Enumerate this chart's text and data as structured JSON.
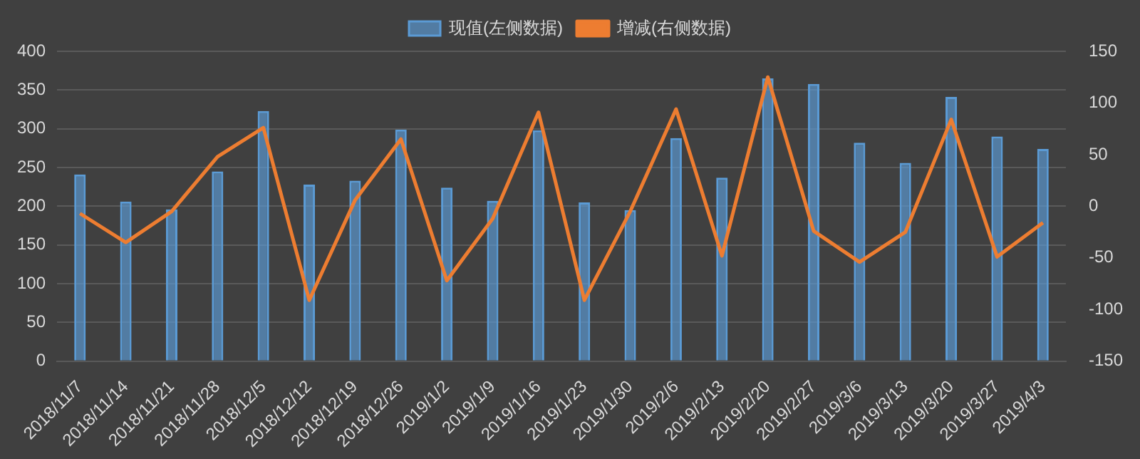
{
  "chart_data": {
    "type": "bar",
    "categories": [
      "2018/11/7",
      "2018/11/14",
      "2018/11/21",
      "2018/11/28",
      "2018/12/5",
      "2018/12/12",
      "2018/12/19",
      "2018/12/26",
      "2019/1/2",
      "2019/1/9",
      "2019/1/16",
      "2019/1/23",
      "2019/1/30",
      "2019/2/6",
      "2019/2/13",
      "2019/2/20",
      "2019/2/27",
      "2019/3/6",
      "2019/3/13",
      "2019/3/20",
      "2019/3/27",
      "2019/4/3"
    ],
    "series": [
      {
        "name": "现值(左侧数据)",
        "color": "#5b9bd5",
        "values": [
          241,
          206,
          196,
          245,
          323,
          228,
          233,
          299,
          224,
          207,
          298,
          205,
          195,
          288,
          237,
          365,
          358,
          282,
          256,
          341,
          290,
          274
        ]
      },
      {
        "name": "增减(右侧数据)",
        "type": "line",
        "axis": "y2",
        "color": "#ed7d31",
        "values": [
          -7,
          -35,
          -5,
          48,
          76,
          -91,
          6,
          65,
          -72,
          -12,
          91,
          -91,
          -5,
          94,
          -48,
          125,
          -24,
          -54,
          -25,
          84,
          -49,
          -16
        ]
      }
    ],
    "ylim": [
      0,
      400
    ],
    "yticks": [
      0,
      50,
      100,
      150,
      200,
      250,
      300,
      350,
      400
    ],
    "y2lim": [
      -150,
      150
    ],
    "y2ticks": [
      -150,
      -100,
      -50,
      0,
      50,
      100,
      150
    ],
    "grid": "y",
    "legend": "top",
    "marker": "none",
    "line_style": "solid"
  }
}
